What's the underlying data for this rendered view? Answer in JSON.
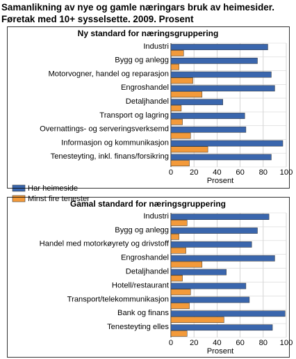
{
  "title_line1": "Samanlikning av nye og gamle næringars bruk av heimesider.",
  "title_line2": "Føretak med 10+ sysselsette. 2009. Prosent",
  "legend": [
    {
      "label": "Har heimeside",
      "color": "#3a66ad"
    },
    {
      "label": "Minst fire tenester",
      "color": "#f39a3a"
    }
  ],
  "chart_data": [
    {
      "type": "bar",
      "orientation": "horizontal",
      "title": "Ny standard for næringsgruppering",
      "xlabel": "Prosent",
      "xlim": [
        0,
        100
      ],
      "xticks": [
        0,
        20,
        40,
        60,
        80,
        100
      ],
      "grid": true,
      "categories": [
        "Industri",
        "Bygg og anlegg",
        "Motorvogner, handel og reparasjon",
        "Engroshandel",
        "Detaljhandel",
        "Transport og lagring",
        "Overnattings- og serveringsverksemd",
        "Informasjon og kommunikasjon",
        "Tenesteyting, inkl. finans/forsikring"
      ],
      "series": [
        {
          "name": "Har heimeside",
          "color": "#3a66ad",
          "values": [
            84,
            75,
            87,
            90,
            45,
            64,
            65,
            97,
            87
          ]
        },
        {
          "name": "Minst fire tenester",
          "color": "#f39a3a",
          "values": [
            11,
            7,
            19,
            27,
            9,
            10,
            17,
            32,
            16
          ]
        }
      ]
    },
    {
      "type": "bar",
      "orientation": "horizontal",
      "title": "Gamal standard for næringsgruppering",
      "xlabel": "Prosent",
      "xlim": [
        0,
        100
      ],
      "xticks": [
        0,
        20,
        40,
        60,
        80,
        100
      ],
      "grid": true,
      "categories": [
        "Industri",
        "Bygg og anlegg",
        "Handel med motorkøyrety og drivstoff",
        "Engroshandel",
        "Detaljhandel",
        "Hotell/restaurant",
        "Transport/telekommunikasjon",
        "Bank og finans",
        "Tenesteyting elles"
      ],
      "series": [
        {
          "name": "Har heimeside",
          "color": "#3a66ad",
          "values": [
            85,
            75,
            70,
            90,
            48,
            65,
            68,
            99,
            88
          ]
        },
        {
          "name": "Minst fire tenester",
          "color": "#f39a3a",
          "values": [
            14,
            7,
            13,
            27,
            10,
            17,
            16,
            46,
            14
          ]
        }
      ]
    }
  ]
}
